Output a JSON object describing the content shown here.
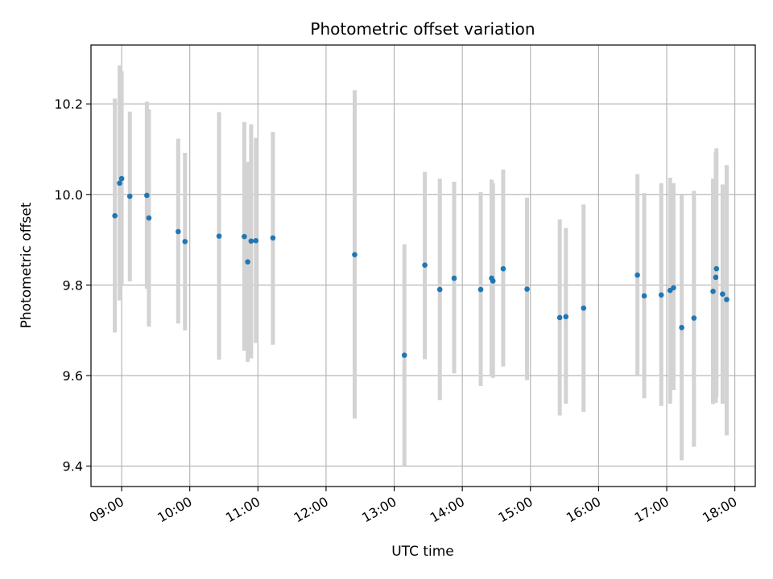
{
  "chart_data": {
    "type": "scatter",
    "title": "Photometric offset variation",
    "xlabel": "UTC time",
    "ylabel": "Photometric offset",
    "x_unit": "hours UTC",
    "xlim": [
      8.55,
      18.3
    ],
    "ylim": [
      9.355,
      10.33
    ],
    "grid": true,
    "x_tick_values": [
      9,
      10,
      11,
      12,
      13,
      14,
      15,
      16,
      17,
      18
    ],
    "x_tick_labels": [
      "09:00",
      "10:00",
      "11:00",
      "12:00",
      "13:00",
      "14:00",
      "15:00",
      "16:00",
      "17:00",
      "18:00"
    ],
    "y_tick_values": [
      9.4,
      9.6,
      9.8,
      10.0,
      10.2
    ],
    "y_tick_labels": [
      "9.4",
      "9.6",
      "9.8",
      "10.0",
      "10.2"
    ],
    "marker_color": "#1f77b4",
    "errorbar_color": "#d3d3d3",
    "points": [
      {
        "x": 8.9,
        "y": 9.953,
        "lo": 9.695,
        "hi": 10.212
      },
      {
        "x": 8.97,
        "y": 10.025,
        "lo": 9.766,
        "hi": 10.285
      },
      {
        "x": 9.0,
        "y": 10.035,
        "lo": 9.8,
        "hi": 10.272
      },
      {
        "x": 9.12,
        "y": 9.996,
        "lo": 9.808,
        "hi": 10.183
      },
      {
        "x": 9.37,
        "y": 9.998,
        "lo": 9.792,
        "hi": 10.205
      },
      {
        "x": 9.4,
        "y": 9.948,
        "lo": 9.708,
        "hi": 10.188
      },
      {
        "x": 9.83,
        "y": 9.918,
        "lo": 9.715,
        "hi": 10.123
      },
      {
        "x": 9.93,
        "y": 9.896,
        "lo": 9.7,
        "hi": 10.092
      },
      {
        "x": 10.43,
        "y": 9.908,
        "lo": 9.635,
        "hi": 10.182
      },
      {
        "x": 10.8,
        "y": 9.907,
        "lo": 9.655,
        "hi": 10.16
      },
      {
        "x": 10.85,
        "y": 9.851,
        "lo": 9.63,
        "hi": 10.072
      },
      {
        "x": 10.9,
        "y": 9.897,
        "lo": 9.638,
        "hi": 10.155
      },
      {
        "x": 10.97,
        "y": 9.898,
        "lo": 9.672,
        "hi": 10.125
      },
      {
        "x": 11.22,
        "y": 9.904,
        "lo": 9.668,
        "hi": 10.138
      },
      {
        "x": 12.42,
        "y": 9.867,
        "lo": 9.505,
        "hi": 10.23
      },
      {
        "x": 13.15,
        "y": 9.645,
        "lo": 9.4,
        "hi": 9.89
      },
      {
        "x": 13.45,
        "y": 9.844,
        "lo": 9.636,
        "hi": 10.05
      },
      {
        "x": 13.67,
        "y": 9.79,
        "lo": 9.546,
        "hi": 10.035
      },
      {
        "x": 13.88,
        "y": 9.815,
        "lo": 9.605,
        "hi": 10.028
      },
      {
        "x": 14.27,
        "y": 9.79,
        "lo": 9.577,
        "hi": 10.005
      },
      {
        "x": 14.43,
        "y": 9.815,
        "lo": 9.6,
        "hi": 10.033
      },
      {
        "x": 14.45,
        "y": 9.809,
        "lo": 9.595,
        "hi": 10.025
      },
      {
        "x": 14.6,
        "y": 9.836,
        "lo": 9.62,
        "hi": 10.055
      },
      {
        "x": 14.95,
        "y": 9.791,
        "lo": 9.59,
        "hi": 9.993
      },
      {
        "x": 15.43,
        "y": 9.728,
        "lo": 9.512,
        "hi": 9.945
      },
      {
        "x": 15.52,
        "y": 9.73,
        "lo": 9.538,
        "hi": 9.926
      },
      {
        "x": 15.78,
        "y": 9.749,
        "lo": 9.52,
        "hi": 9.978
      },
      {
        "x": 16.57,
        "y": 9.822,
        "lo": 9.6,
        "hi": 10.045
      },
      {
        "x": 16.67,
        "y": 9.776,
        "lo": 9.55,
        "hi": 10.003
      },
      {
        "x": 16.92,
        "y": 9.778,
        "lo": 9.533,
        "hi": 10.025
      },
      {
        "x": 17.05,
        "y": 9.788,
        "lo": 9.538,
        "hi": 10.037
      },
      {
        "x": 17.1,
        "y": 9.794,
        "lo": 9.568,
        "hi": 10.025
      },
      {
        "x": 17.22,
        "y": 9.706,
        "lo": 9.413,
        "hi": 10.0
      },
      {
        "x": 17.4,
        "y": 9.727,
        "lo": 9.443,
        "hi": 10.008
      },
      {
        "x": 17.68,
        "y": 9.786,
        "lo": 9.537,
        "hi": 10.035
      },
      {
        "x": 17.72,
        "y": 9.817,
        "lo": 9.54,
        "hi": 10.093
      },
      {
        "x": 17.73,
        "y": 9.836,
        "lo": 9.553,
        "hi": 10.102
      },
      {
        "x": 17.82,
        "y": 9.78,
        "lo": 9.538,
        "hi": 10.022
      },
      {
        "x": 17.88,
        "y": 9.768,
        "lo": 9.468,
        "hi": 10.065
      }
    ]
  }
}
